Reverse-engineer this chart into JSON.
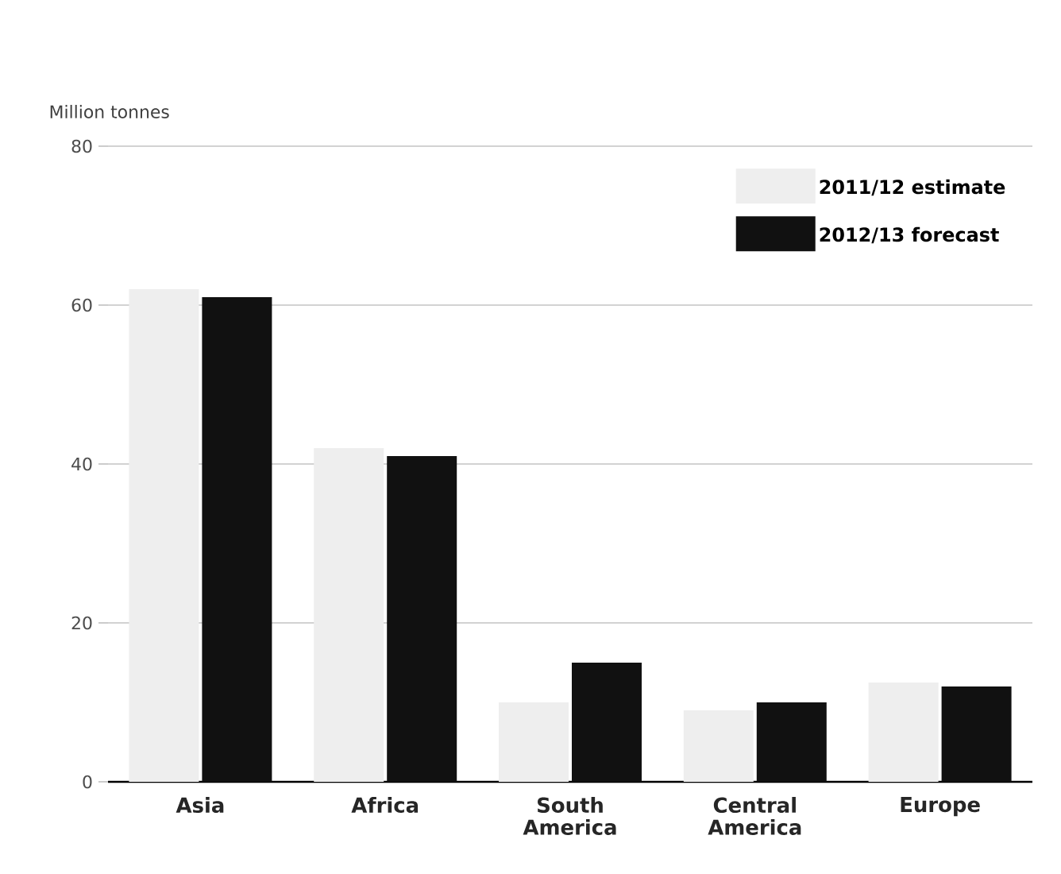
{
  "chart_data": {
    "type": "bar",
    "ylabel": "Million tonnes",
    "categories": [
      "Asia",
      "Africa",
      "South\nAmerica",
      "Central\nAmerica",
      "Europe"
    ],
    "series": [
      {
        "name": "2011/12 estimate",
        "color": "#eeeeee",
        "values": [
          62,
          42,
          10,
          9,
          12.5
        ]
      },
      {
        "name": "2012/13 forecast",
        "color": "#111111",
        "values": [
          61,
          41,
          15,
          10,
          12
        ]
      }
    ],
    "ylim": [
      0,
      80
    ],
    "yticks": [
      0,
      20,
      40,
      60,
      80
    ],
    "grid": "y",
    "legend": "top right"
  }
}
